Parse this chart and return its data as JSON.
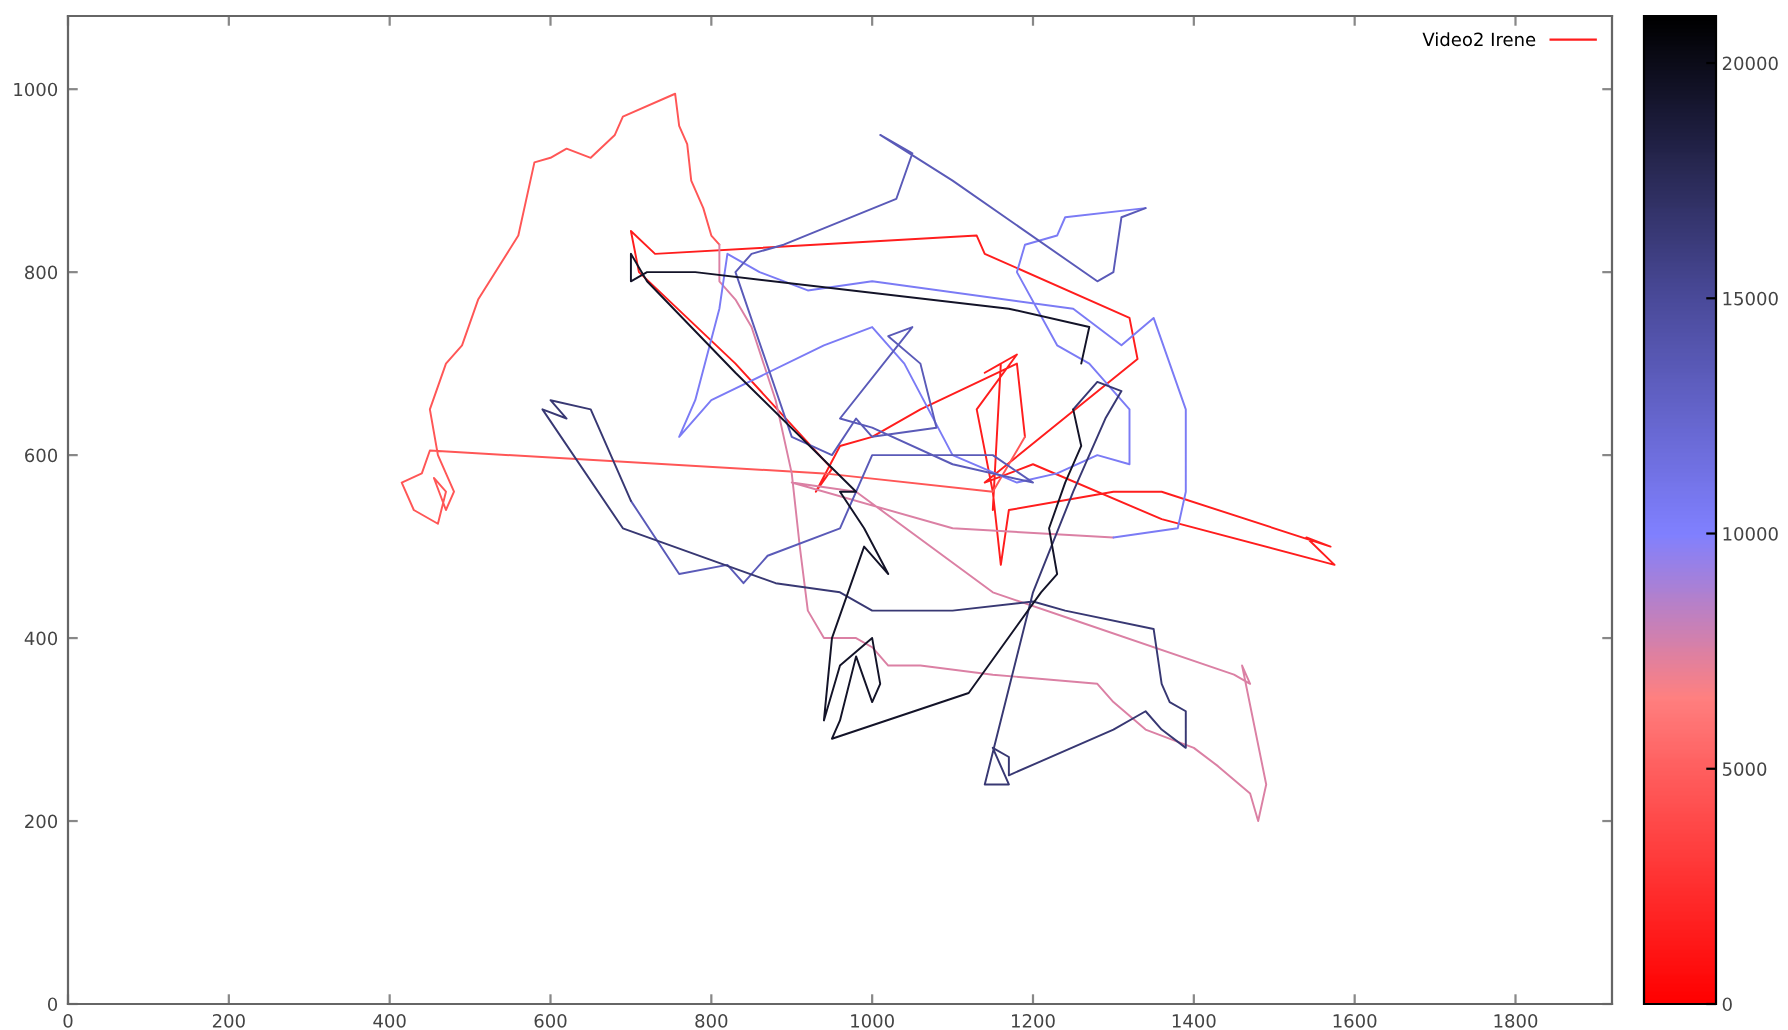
{
  "chart_data": {
    "type": "line",
    "xlim": [
      0,
      1920
    ],
    "ylim": [
      0,
      1080
    ],
    "xticks": [
      0,
      200,
      400,
      600,
      800,
      1000,
      1200,
      1400,
      1600,
      1800
    ],
    "yticks": [
      0,
      200,
      400,
      600,
      800,
      1000
    ],
    "clim": [
      0,
      21000
    ],
    "cticks": [
      0,
      5000,
      10000,
      15000,
      20000
    ],
    "legend": "top right",
    "grid": false,
    "series": [
      {
        "name": "Video2 Irene",
        "color": "#ff1d1d",
        "x": [
          1150,
          1160,
          1140,
          1180,
          1130,
          1150,
          1160,
          1170,
          1300,
          1360,
          1570,
          1540,
          1575,
          1360,
          1200,
          1140,
          1330,
          1320,
          1140,
          1130,
          730,
          700,
          710,
          830,
          950,
          930,
          960,
          1000,
          1060,
          1180,
          1190
        ],
        "values": [
          540,
          700,
          690,
          710,
          650,
          560,
          480,
          540,
          560,
          560,
          500,
          510,
          480,
          530,
          590,
          570,
          705,
          750,
          820,
          840,
          820,
          845,
          800,
          700,
          585,
          560,
          610,
          620,
          650,
          700,
          620
        ]
      },
      {
        "color": "#ff5656",
        "x": [
          1190,
          1150,
          940,
          450,
          440,
          415,
          430,
          460,
          470,
          455,
          470,
          480,
          460,
          450,
          470,
          490,
          510,
          560,
          580,
          600,
          620,
          650,
          680,
          690,
          755,
          760,
          770,
          775,
          790,
          800,
          810
        ],
        "values": [
          620,
          560,
          580,
          605,
          580,
          570,
          540,
          525,
          560,
          575,
          540,
          560,
          600,
          650,
          700,
          720,
          770,
          840,
          920,
          925,
          935,
          925,
          950,
          970,
          995,
          960,
          940,
          900,
          870,
          840,
          830
        ]
      },
      {
        "color": "#db80a4",
        "x": [
          810,
          810,
          830,
          850,
          880,
          900,
          910,
          920,
          940,
          980,
          1000,
          1020,
          1060,
          1150,
          1280,
          1300,
          1340,
          1400,
          1430,
          1470,
          1480,
          1490,
          1460,
          1470,
          1450,
          1250,
          1150,
          980,
          900,
          1100,
          1300
        ],
        "values": [
          830,
          790,
          770,
          740,
          660,
          580,
          500,
          430,
          400,
          400,
          390,
          370,
          370,
          360,
          350,
          330,
          300,
          280,
          260,
          230,
          200,
          240,
          370,
          350,
          360,
          420,
          450,
          560,
          570,
          520,
          510
        ]
      },
      {
        "color": "#7b7bf5",
        "x": [
          1300,
          1380,
          1390,
          1390,
          1350,
          1310,
          1250,
          1000,
          920,
          860,
          820,
          810,
          780,
          760,
          800,
          940,
          1000,
          1040,
          1100,
          1180,
          1230,
          1280,
          1320,
          1320,
          1270,
          1230,
          1180,
          1190,
          1230,
          1240,
          1340
        ],
        "values": [
          510,
          520,
          560,
          650,
          750,
          720,
          760,
          790,
          780,
          800,
          820,
          760,
          660,
          620,
          660,
          720,
          740,
          700,
          600,
          570,
          580,
          600,
          590,
          650,
          700,
          720,
          800,
          830,
          840,
          860,
          870
        ]
      },
      {
        "color": "#5a5ab8",
        "x": [
          1340,
          1310,
          1300,
          1280,
          1100,
          1010,
          1050,
          1030,
          890,
          850,
          830,
          900,
          950,
          980,
          1000,
          1080,
          1060,
          1020,
          1050,
          960,
          1000,
          1100,
          1200,
          1150,
          1000,
          960,
          870,
          840,
          820,
          760,
          700
        ],
        "values": [
          870,
          860,
          800,
          790,
          900,
          950,
          930,
          880,
          830,
          820,
          800,
          620,
          600,
          640,
          620,
          630,
          700,
          730,
          740,
          640,
          630,
          590,
          570,
          600,
          600,
          520,
          490,
          460,
          480,
          470,
          550
        ]
      },
      {
        "color": "#383873",
        "x": [
          700,
          650,
          600,
          620,
          590,
          690,
          880,
          960,
          1000,
          1100,
          1200,
          1240,
          1350,
          1360,
          1370,
          1390,
          1390,
          1360,
          1340,
          1300,
          1170,
          1170,
          1150,
          1170,
          1140,
          1200,
          1250,
          1290,
          1310,
          1280,
          1250
        ],
        "values": [
          550,
          650,
          660,
          640,
          650,
          520,
          460,
          450,
          430,
          430,
          440,
          430,
          410,
          350,
          330,
          320,
          280,
          300,
          320,
          300,
          250,
          270,
          280,
          240,
          240,
          450,
          560,
          640,
          670,
          680,
          650
        ]
      },
      {
        "color": "#131328",
        "x": [
          1250,
          1260,
          1240,
          1220,
          1230,
          1210,
          1120,
          950,
          960,
          980,
          1000,
          1010,
          1000,
          960,
          940,
          950,
          990,
          1020,
          990,
          960,
          980,
          830,
          720,
          700,
          700,
          720,
          780,
          1170,
          1270,
          1260
        ],
        "values": [
          650,
          610,
          570,
          520,
          470,
          450,
          340,
          290,
          310,
          380,
          330,
          350,
          400,
          370,
          310,
          400,
          500,
          470,
          520,
          560,
          560,
          690,
          790,
          820,
          790,
          800,
          800,
          760,
          740,
          700
        ]
      }
    ]
  }
}
